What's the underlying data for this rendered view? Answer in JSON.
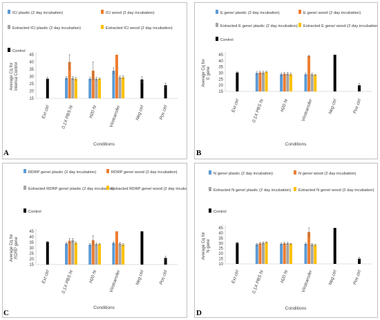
{
  "colors": {
    "plastic": "#5b9bd5",
    "wood": "#ed7d31",
    "extracted_plastic": "#a5a5a5",
    "extracted_wood": "#ffc000",
    "control": "#000000",
    "axis": "#bfbfbf",
    "error_bar": "#555555"
  },
  "chart_data": [
    {
      "type": "bar",
      "panel_letter": "A",
      "xlabel": "Conditions",
      "ylabel": [
        "Average Cq for",
        "Internal Control"
      ],
      "yticks": [
        15,
        20,
        25,
        30,
        35,
        40,
        45
      ],
      "ylim": [
        15,
        45
      ],
      "categories": [
        "Ext ctrl",
        "0.1X PBS ht",
        "H20 ht",
        "Virotransfer",
        "Neg ctrl",
        "Pos ctrl"
      ],
      "legend_position": "top",
      "series": [
        {
          "name": "IC/ plastic (2 day incubation)",
          "color_key": "plastic",
          "values": [
            null,
            29,
            28.5,
            34,
            null,
            null
          ],
          "errors": [
            0,
            1,
            1,
            2,
            0,
            0
          ]
        },
        {
          "name": "IC/ wood (2 day incubation)",
          "color_key": "wood",
          "values": [
            null,
            40,
            34,
            45,
            null,
            null
          ],
          "errors": [
            0,
            5,
            6,
            0,
            0,
            0
          ]
        },
        {
          "name": "Extracted IC/ plastic (2 day incubation)",
          "color_key": "extracted_plastic",
          "values": [
            null,
            29,
            28.5,
            29.5,
            null,
            null
          ],
          "errors": [
            0,
            1,
            1,
            1,
            0,
            0
          ]
        },
        {
          "name": "Extracted IC/ wood (2 day incubation)",
          "color_key": "extracted_wood",
          "values": [
            null,
            28.5,
            28.5,
            29.5,
            null,
            null
          ],
          "errors": [
            0,
            1,
            0.5,
            1,
            0,
            0
          ]
        },
        {
          "name": "Control",
          "color_key": "control",
          "values": [
            28.5,
            null,
            null,
            null,
            28,
            24
          ],
          "errors": [
            1,
            0,
            0,
            0,
            2,
            1.5
          ]
        }
      ]
    },
    {
      "type": "bar",
      "panel_letter": "B",
      "xlabel": "Conditions",
      "ylabel": [
        "Average Cq for",
        "E gene"
      ],
      "yticks": [
        15,
        20,
        25,
        30,
        35,
        40,
        45
      ],
      "ylim": [
        15,
        45
      ],
      "categories": [
        "Ext ctrl",
        "0.1X PBS ht",
        "H20 ht",
        "Virotransfer",
        "Neg ctrl",
        "Pos ctrl"
      ],
      "legend_position": "top",
      "series": [
        {
          "name": "E gene/ plastic (2 day incubation)",
          "color_key": "plastic",
          "values": [
            null,
            30,
            29,
            29,
            null,
            null
          ],
          "errors": [
            0,
            1,
            1,
            1,
            0,
            0
          ]
        },
        {
          "name": "E gene/ wood (2 day incubation)",
          "color_key": "wood",
          "values": [
            null,
            30.5,
            29.5,
            44,
            null,
            null
          ],
          "errors": [
            0,
            1,
            1,
            0.5,
            0,
            0
          ]
        },
        {
          "name": "Extracted E gene/ plastic (2 day incubation)",
          "color_key": "extracted_plastic",
          "values": [
            null,
            30.5,
            29.5,
            29,
            null,
            null
          ],
          "errors": [
            0,
            1,
            1,
            1,
            0,
            0
          ]
        },
        {
          "name": "Extracted E gene/ wood (2 day incubation)",
          "color_key": "extracted_wood",
          "values": [
            null,
            31,
            29,
            28.5,
            null,
            null
          ],
          "errors": [
            0,
            0.5,
            1,
            0.5,
            0,
            0
          ]
        },
        {
          "name": "Control",
          "color_key": "control",
          "values": [
            30.5,
            null,
            null,
            null,
            45,
            20
          ],
          "errors": [
            0.5,
            0,
            0,
            0,
            0,
            1.5
          ]
        }
      ]
    },
    {
      "type": "bar",
      "panel_letter": "C",
      "xlabel": "Conditions",
      "ylabel": [
        "Average Cq for",
        "RDRP gene"
      ],
      "yticks": [
        15,
        20,
        25,
        30,
        35,
        40,
        45
      ],
      "ylim": [
        15,
        45
      ],
      "categories": [
        "Ext ctrl",
        "0.1X PBS ht",
        "H20 ht",
        "Virotransfer",
        "Neg ctrl",
        "Pos ctrl"
      ],
      "legend_position": "top",
      "series": [
        {
          "name": "RDRP gene/ plastic (2 day incubation)",
          "color_key": "plastic",
          "values": [
            null,
            34,
            33,
            34.5,
            null,
            null
          ],
          "errors": [
            0,
            1,
            1,
            1,
            0,
            0
          ]
        },
        {
          "name": "RDRP gene/ wood (2 day incubation)",
          "color_key": "wood",
          "values": [
            null,
            36.5,
            37,
            45,
            null,
            null
          ],
          "errors": [
            0,
            2,
            4,
            0,
            0,
            0
          ]
        },
        {
          "name": "Extracted RDRP gene/ plastic (2 day incubation)",
          "color_key": "extracted_plastic",
          "values": [
            null,
            37,
            33.5,
            34,
            null,
            null
          ],
          "errors": [
            0,
            1.5,
            1,
            1,
            0,
            0
          ]
        },
        {
          "name": "Extracted RDRP gene/ wood (2 day incubation)",
          "color_key": "extracted_wood",
          "values": [
            null,
            34.5,
            33.5,
            33,
            null,
            null
          ],
          "errors": [
            0,
            1,
            0.5,
            1,
            0,
            0
          ]
        },
        {
          "name": "Control",
          "color_key": "control",
          "values": [
            35.5,
            null,
            null,
            null,
            45,
            21
          ],
          "errors": [
            0.5,
            0,
            0,
            0,
            0,
            1.5
          ]
        }
      ]
    },
    {
      "type": "bar",
      "panel_letter": "D",
      "xlabel": "Conditions",
      "ylabel": [
        "Average Cq for",
        "N gene"
      ],
      "yticks": [
        10,
        15,
        20,
        25,
        30,
        35,
        40,
        45
      ],
      "ylim": [
        10,
        45
      ],
      "categories": [
        "Ext ctrl",
        "0.1X PBS ht",
        "H20 ht",
        "Virotransfer",
        "Neg ctrl",
        "Pos ctrl"
      ],
      "legend_position": "top",
      "series": [
        {
          "name": "N gene/ plastic (2 day incubation)",
          "color_key": "plastic",
          "values": [
            null,
            29,
            29.5,
            29.5,
            null,
            null
          ],
          "errors": [
            0,
            1,
            1,
            1,
            0,
            0
          ]
        },
        {
          "name": "N gene/ wood (2 day incubation)",
          "color_key": "wood",
          "values": [
            null,
            30,
            30,
            41,
            null,
            null
          ],
          "errors": [
            0,
            1,
            1,
            4,
            0,
            0
          ]
        },
        {
          "name": "Extracted N gene/ plastic (2 day incubation)",
          "color_key": "extracted_plastic",
          "values": [
            null,
            30.5,
            30,
            29,
            null,
            null
          ],
          "errors": [
            0,
            1,
            1,
            1,
            0,
            0
          ]
        },
        {
          "name": "Extracted N gene/ wood (2 day incubation)",
          "color_key": "extracted_wood",
          "values": [
            null,
            31,
            29.5,
            28.5,
            null,
            null
          ],
          "errors": [
            0,
            0.5,
            0.5,
            0.5,
            0,
            0
          ]
        },
        {
          "name": "Control",
          "color_key": "control",
          "values": [
            30.5,
            null,
            null,
            null,
            45,
            15
          ],
          "errors": [
            0.5,
            0,
            0,
            0,
            0,
            1.5
          ]
        }
      ]
    }
  ]
}
